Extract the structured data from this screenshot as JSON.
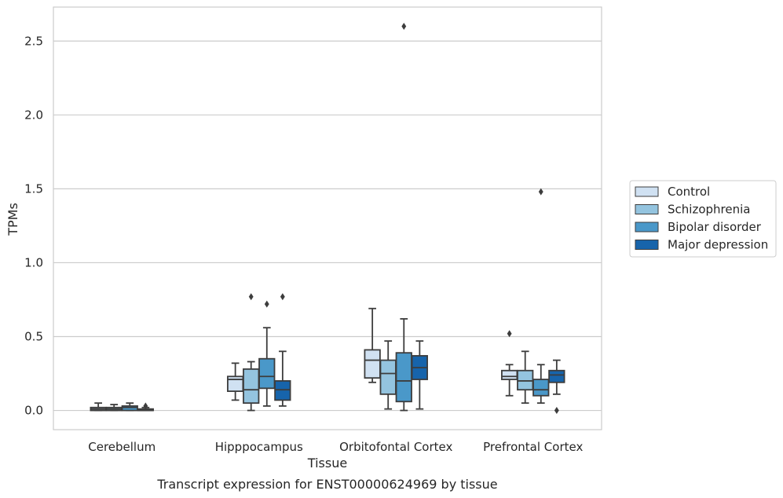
{
  "chart_data": {
    "type": "box",
    "caption": "Transcript expression for ENST00000624969 by tissue",
    "xlabel": "Tissue",
    "ylabel": "TPMs",
    "ylim": [
      -0.13,
      2.73
    ],
    "yticks": [
      0.0,
      0.5,
      1.0,
      1.5,
      2.0,
      2.5
    ],
    "ytick_labels": [
      "0.0",
      "0.5",
      "1.0",
      "1.5",
      "2.0",
      "2.5"
    ],
    "grid": "horizontal",
    "legend_position": "right",
    "categories": [
      "Cerebellum",
      "Hipppocampus",
      "Orbitofontal Cortex",
      "Prefrontal Cortex"
    ],
    "series": [
      {
        "name": "Control",
        "color": "#d0e1f2",
        "boxes": [
          {
            "whisker_low": 0.0,
            "q1": 0.0,
            "median": 0.01,
            "q3": 0.02,
            "whisker_high": 0.05,
            "outliers": []
          },
          {
            "whisker_low": 0.07,
            "q1": 0.13,
            "median": 0.21,
            "q3": 0.23,
            "whisker_high": 0.32,
            "outliers": []
          },
          {
            "whisker_low": 0.19,
            "q1": 0.22,
            "median": 0.34,
            "q3": 0.41,
            "whisker_high": 0.69,
            "outliers": []
          },
          {
            "whisker_low": 0.1,
            "q1": 0.21,
            "median": 0.23,
            "q3": 0.27,
            "whisker_high": 0.31,
            "outliers": [
              0.52
            ]
          }
        ]
      },
      {
        "name": "Schizophrenia",
        "color": "#94c4df",
        "boxes": [
          {
            "whisker_low": 0.0,
            "q1": 0.0,
            "median": 0.01,
            "q3": 0.02,
            "whisker_high": 0.04,
            "outliers": []
          },
          {
            "whisker_low": 0.0,
            "q1": 0.05,
            "median": 0.14,
            "q3": 0.28,
            "whisker_high": 0.33,
            "outliers": [
              0.77
            ]
          },
          {
            "whisker_low": 0.01,
            "q1": 0.11,
            "median": 0.25,
            "q3": 0.34,
            "whisker_high": 0.47,
            "outliers": []
          },
          {
            "whisker_low": 0.05,
            "q1": 0.14,
            "median": 0.2,
            "q3": 0.27,
            "whisker_high": 0.4,
            "outliers": []
          }
        ]
      },
      {
        "name": "Bipolar disorder",
        "color": "#4a98c9",
        "boxes": [
          {
            "whisker_low": 0.0,
            "q1": 0.0,
            "median": 0.02,
            "q3": 0.03,
            "whisker_high": 0.05,
            "outliers": []
          },
          {
            "whisker_low": 0.03,
            "q1": 0.15,
            "median": 0.23,
            "q3": 0.35,
            "whisker_high": 0.56,
            "outliers": [
              0.72
            ]
          },
          {
            "whisker_low": 0.0,
            "q1": 0.06,
            "median": 0.2,
            "q3": 0.39,
            "whisker_high": 0.62,
            "outliers": [
              2.6
            ]
          },
          {
            "whisker_low": 0.05,
            "q1": 0.1,
            "median": 0.14,
            "q3": 0.21,
            "whisker_high": 0.31,
            "outliers": [
              1.48
            ]
          }
        ]
      },
      {
        "name": "Major depression",
        "color": "#1764ab",
        "boxes": [
          {
            "whisker_low": 0.0,
            "q1": 0.0,
            "median": 0.0,
            "q3": 0.01,
            "whisker_high": 0.02,
            "outliers": [
              0.03
            ]
          },
          {
            "whisker_low": 0.03,
            "q1": 0.07,
            "median": 0.14,
            "q3": 0.2,
            "whisker_high": 0.4,
            "outliers": [
              0.77
            ]
          },
          {
            "whisker_low": 0.01,
            "q1": 0.21,
            "median": 0.29,
            "q3": 0.37,
            "whisker_high": 0.47,
            "outliers": []
          },
          {
            "whisker_low": 0.11,
            "q1": 0.19,
            "median": 0.24,
            "q3": 0.27,
            "whisker_high": 0.34,
            "outliers": [
              0.0
            ]
          }
        ]
      }
    ]
  }
}
